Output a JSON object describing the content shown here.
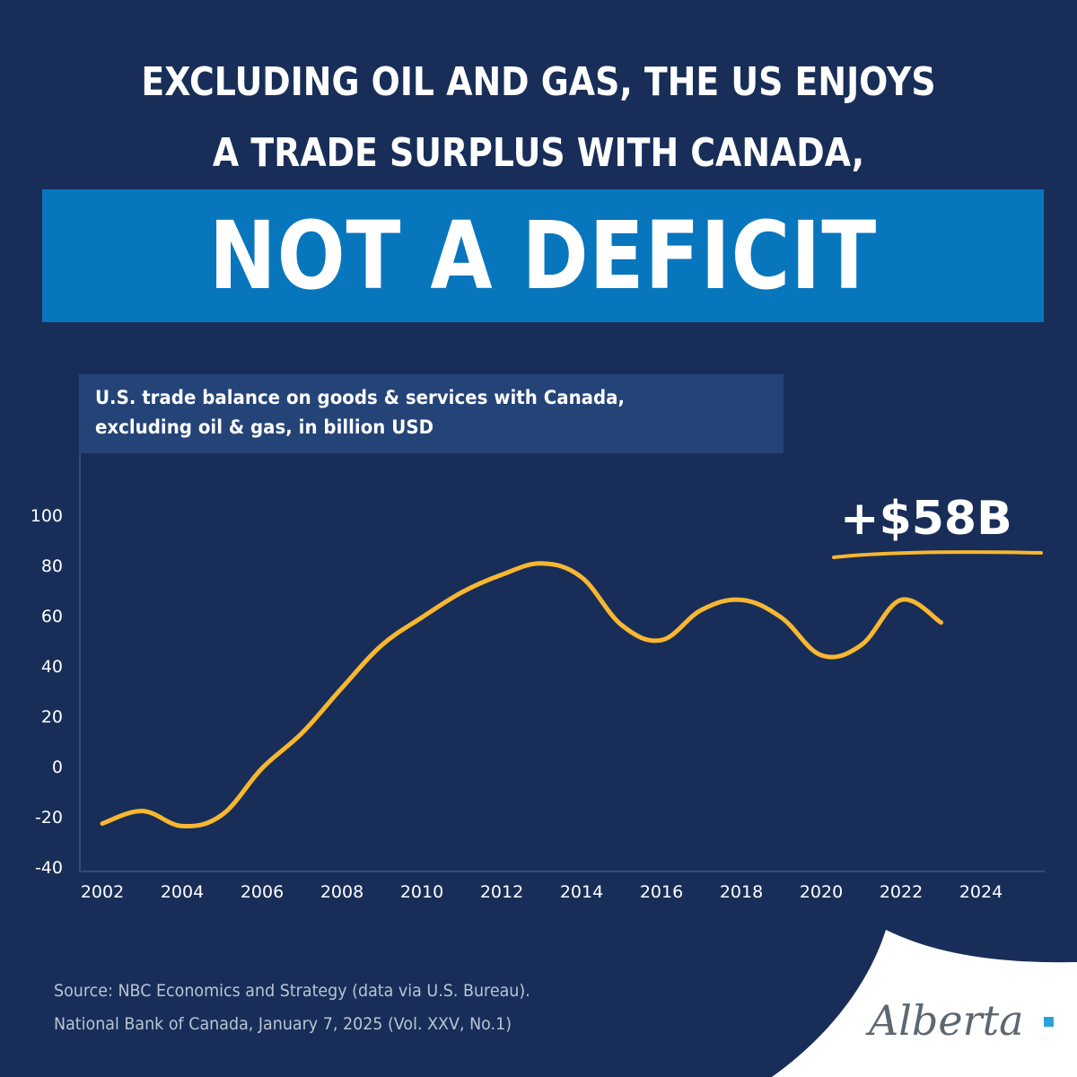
{
  "headline": {
    "line1": "EXCLUDING OIL AND GAS, THE US ENJOYS",
    "line2": "A TRADE SURPLUS WITH CANADA,",
    "banner": "NOT A DEFICIT"
  },
  "chart_subtitle": {
    "line1": "U.S. trade balance on goods & services with Canada,",
    "line2": "excluding oil & gas, in billion USD"
  },
  "callout": "+$58B",
  "source": {
    "line1": "Source: NBC Economics and Strategy (data via U.S. Bureau).",
    "line2": "National Bank of Canada, January 7, 2025 (Vol. XXV, No.1)"
  },
  "logo": {
    "text": "Alberta"
  },
  "colors": {
    "background": "#182e58",
    "banner": "#0876bd",
    "subtitle_box": "#244478",
    "line": "#f9b730",
    "axis": "#2f4c7e",
    "logo_square": "#2aa3d8"
  },
  "chart_data": {
    "type": "line",
    "title": "U.S. trade balance on goods & services with Canada, excluding oil & gas, in billion USD",
    "xlabel": "",
    "ylabel": "",
    "x": [
      2002,
      2003,
      2004,
      2005,
      2006,
      2007,
      2008,
      2009,
      2010,
      2011,
      2012,
      2013,
      2014,
      2015,
      2016,
      2017,
      2018,
      2019,
      2020,
      2021,
      2022,
      2023
    ],
    "series": [
      {
        "name": "U.S. trade balance with Canada ex oil & gas",
        "values": [
          -22,
          -17,
          -23,
          -18.5,
          0,
          14,
          32,
          49,
          60,
          70,
          77,
          81.5,
          76,
          57,
          51,
          63,
          67,
          60,
          45,
          49,
          67,
          58
        ]
      }
    ],
    "x_ticks": [
      "2002",
      "2004",
      "2006",
      "2008",
      "2010",
      "2012",
      "2014",
      "2016",
      "2018",
      "2020",
      "2022",
      "2024"
    ],
    "y_ticks": [
      "100",
      "80",
      "60",
      "40",
      "20",
      "0",
      "-20",
      "-40"
    ],
    "ylim": [
      -40,
      100
    ],
    "xlim": [
      2002,
      2025.5
    ],
    "grid": false,
    "legend": null,
    "annotations": [
      "+$58B"
    ]
  }
}
